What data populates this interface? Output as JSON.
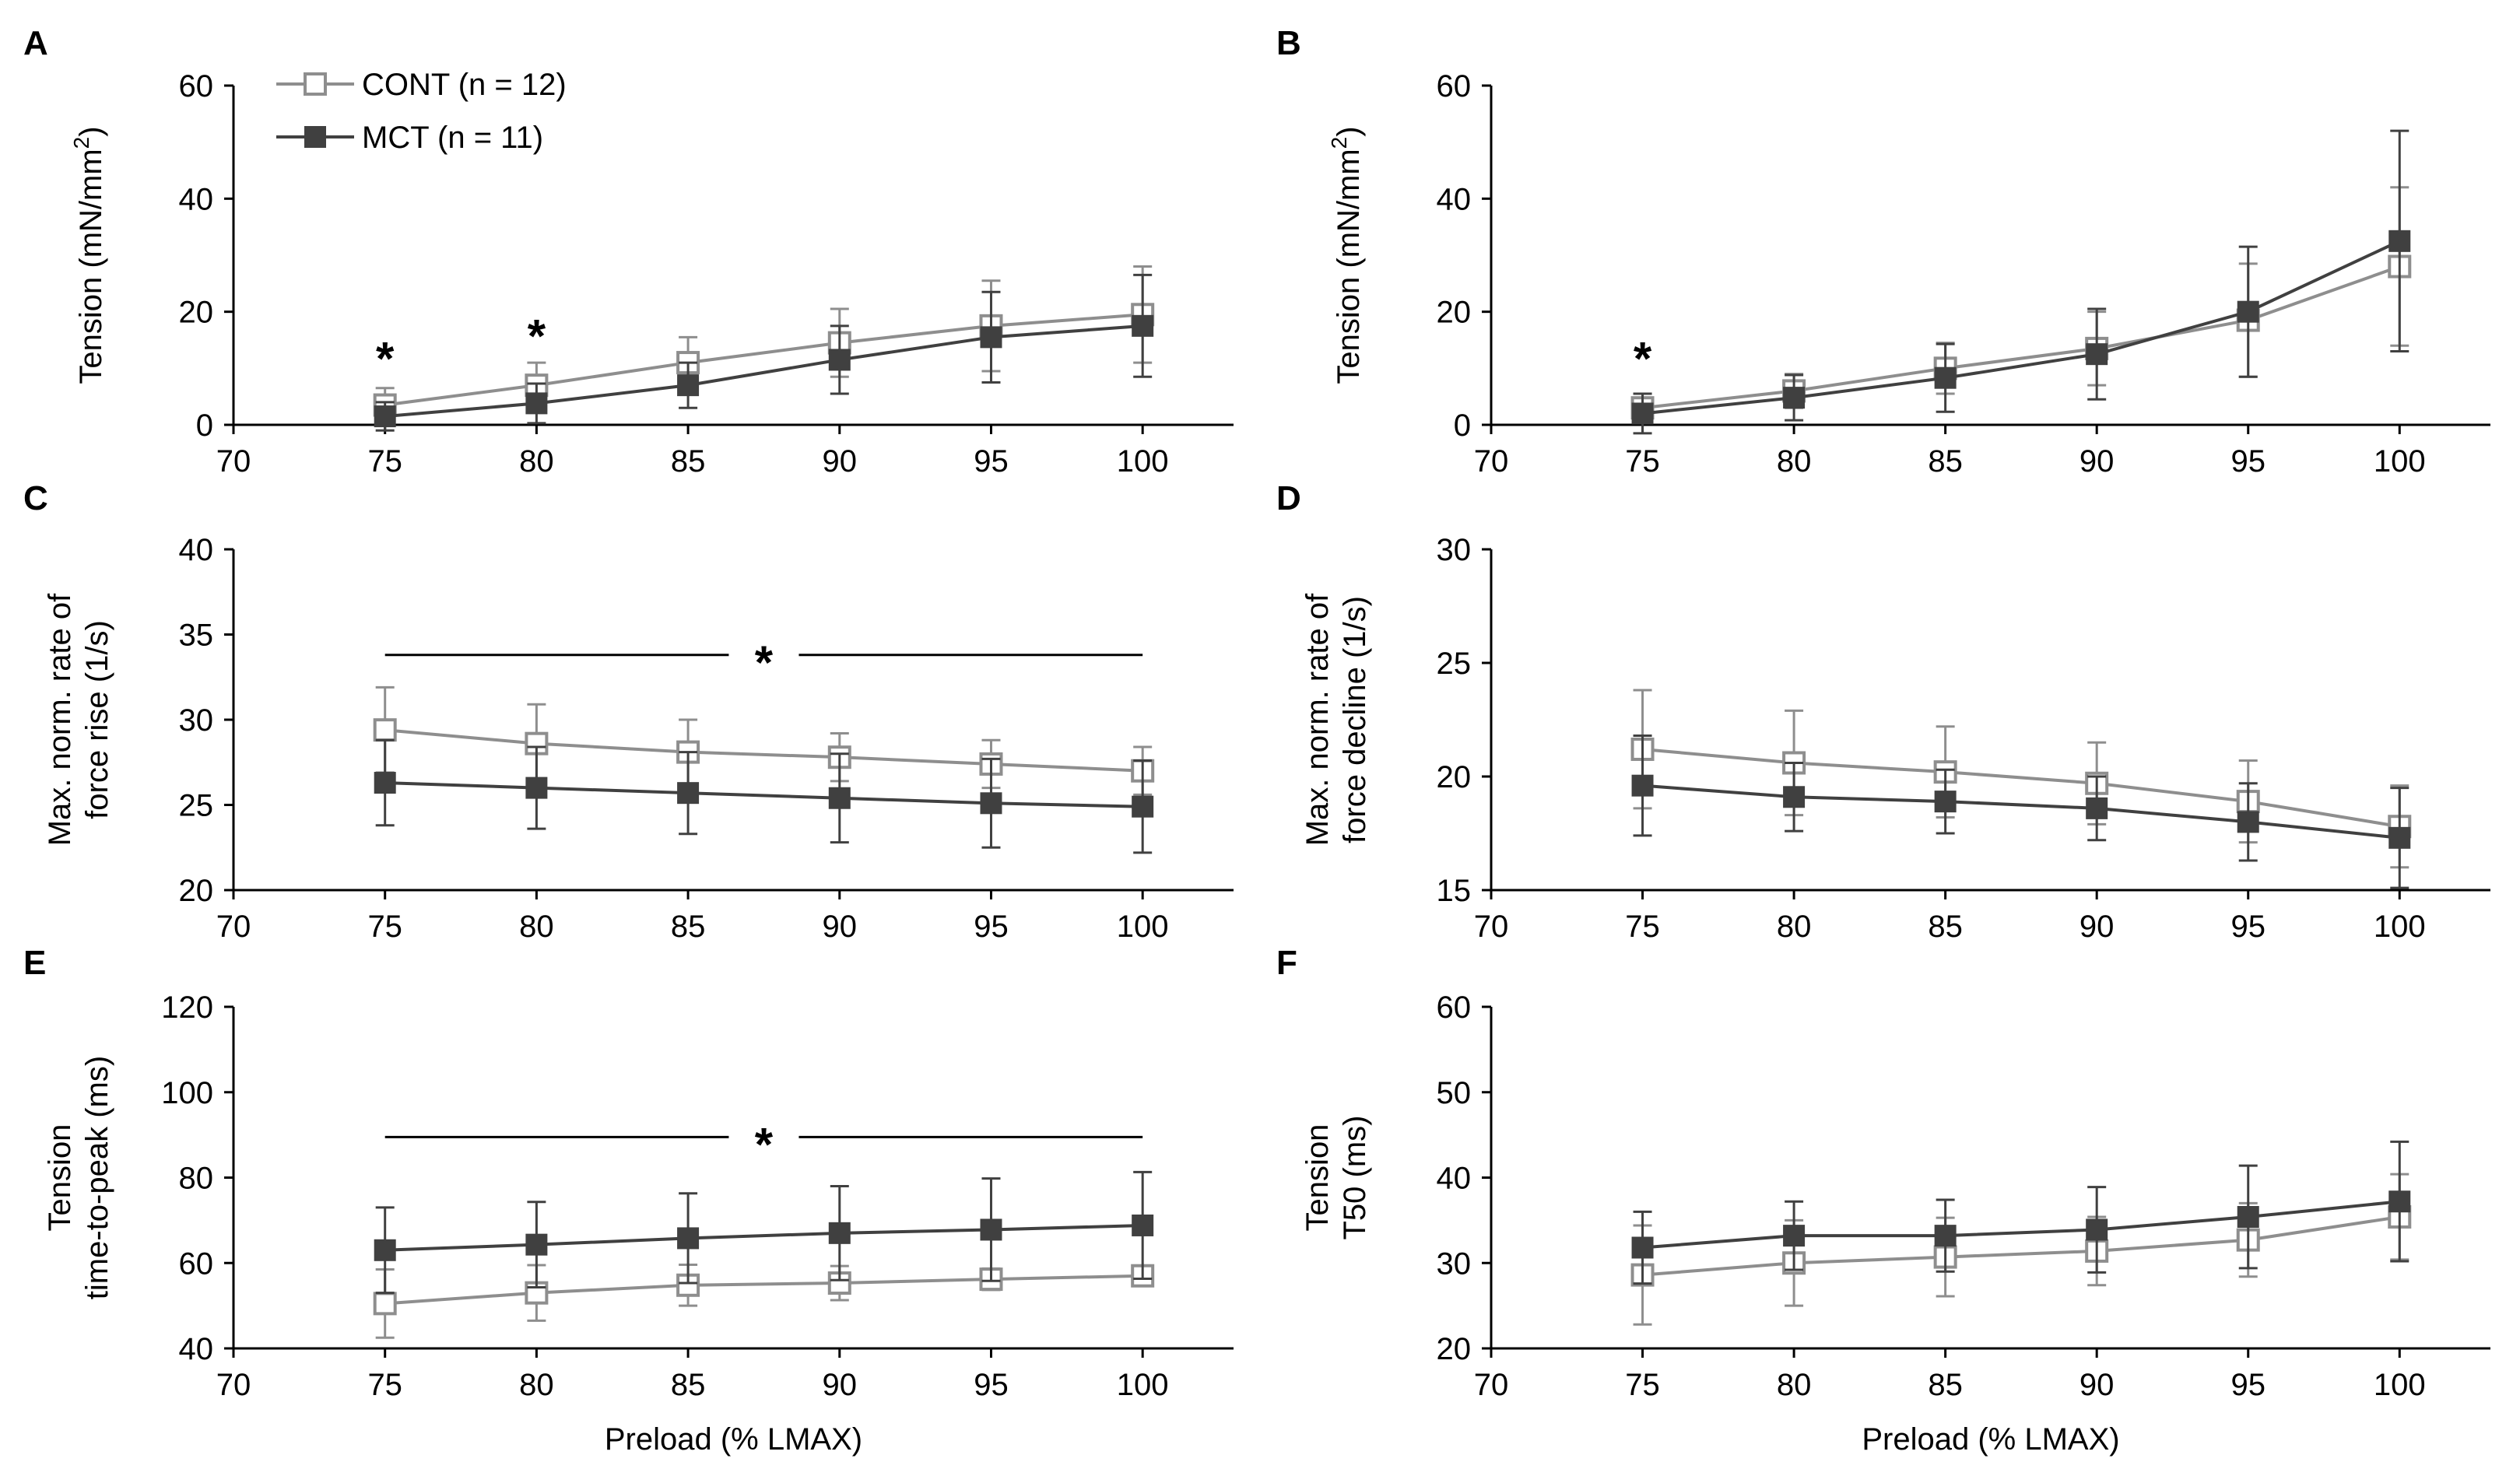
{
  "legend": {
    "items": [
      {
        "label": "CONT (n = 12)",
        "color": "#8e8e8e",
        "marker": "open-square"
      },
      {
        "label": "MCT (n = 11)",
        "color": "#404040",
        "marker": "filled-square"
      }
    ]
  },
  "colors": {
    "cont": "#8e8e8e",
    "mct": "#404040",
    "axis": "#000000"
  },
  "chart_data": [
    {
      "panel": "A",
      "type": "line",
      "xlabel": "",
      "ylabel": "Tension (mN/mm",
      "ylabel_sup": "2",
      "ylabel_end": ")",
      "xlim": [
        70,
        103
      ],
      "ylim": [
        0,
        60
      ],
      "xticks": [
        70,
        75,
        80,
        85,
        90,
        95,
        100
      ],
      "yticks": [
        0,
        20,
        40,
        60
      ],
      "x": [
        75,
        80,
        85,
        90,
        95,
        100
      ],
      "series": [
        {
          "name": "CONT",
          "values": [
            3.5,
            7,
            11,
            14.5,
            17.5,
            19.5
          ],
          "err": [
            3,
            4,
            4.5,
            6,
            8,
            8.5
          ]
        },
        {
          "name": "MCT",
          "values": [
            1.5,
            3.8,
            7,
            11.5,
            15.5,
            17.5
          ],
          "err": [
            2.5,
            3.5,
            4,
            6,
            8,
            9
          ]
        }
      ],
      "annotations": [
        {
          "x": 75,
          "y": 13,
          "text": "*"
        },
        {
          "x": 80,
          "y": 17,
          "text": "*"
        }
      ]
    },
    {
      "panel": "B",
      "type": "line",
      "xlabel": "",
      "ylabel": "Tension (mN/mm",
      "ylabel_sup": "2",
      "ylabel_end": ")",
      "xlim": [
        70,
        103
      ],
      "ylim": [
        0,
        60
      ],
      "xticks": [
        70,
        75,
        80,
        85,
        90,
        95,
        100
      ],
      "yticks": [
        0,
        20,
        40,
        60
      ],
      "x": [
        75,
        80,
        85,
        90,
        95,
        100
      ],
      "series": [
        {
          "name": "CONT",
          "values": [
            3,
            6,
            10,
            13.5,
            18.5,
            28
          ],
          "err": [
            2.5,
            3,
            4.5,
            6.5,
            10,
            14
          ]
        },
        {
          "name": "MCT",
          "values": [
            2,
            4.8,
            8.3,
            12.5,
            20,
            32.5
          ],
          "err": [
            3.5,
            4,
            6,
            8,
            11.5,
            19.5
          ]
        }
      ],
      "annotations": [
        {
          "x": 75,
          "y": 13,
          "text": "*"
        }
      ]
    },
    {
      "panel": "C",
      "type": "line",
      "xlabel": "",
      "ylabel_lines": [
        "Max. norm. rate of",
        "force rise (1/s)"
      ],
      "xlim": [
        70,
        103
      ],
      "ylim": [
        20,
        40
      ],
      "xticks": [
        70,
        75,
        80,
        85,
        90,
        95,
        100
      ],
      "yticks": [
        20,
        25,
        30,
        35,
        40
      ],
      "x": [
        75,
        80,
        85,
        90,
        95,
        100
      ],
      "series": [
        {
          "name": "CONT",
          "values": [
            29.4,
            28.6,
            28.1,
            27.8,
            27.4,
            27
          ],
          "err": [
            2.5,
            2.3,
            1.9,
            1.4,
            1.4,
            1.4
          ]
        },
        {
          "name": "MCT",
          "values": [
            26.3,
            26,
            25.7,
            25.4,
            25.1,
            24.9
          ],
          "err": [
            2.5,
            2.4,
            2.4,
            2.6,
            2.6,
            2.7
          ]
        }
      ],
      "bracket": {
        "x1": 75,
        "x2": 100,
        "y": 33.8,
        "text": "*"
      }
    },
    {
      "panel": "D",
      "type": "line",
      "xlabel": "",
      "ylabel_lines": [
        "Max. norm. rate of",
        "force decline (1/s)"
      ],
      "xlim": [
        70,
        103
      ],
      "ylim": [
        15,
        30
      ],
      "xticks": [
        70,
        75,
        80,
        85,
        90,
        95,
        100
      ],
      "yticks": [
        15,
        20,
        25,
        30
      ],
      "x": [
        75,
        80,
        85,
        90,
        95,
        100
      ],
      "series": [
        {
          "name": "CONT",
          "values": [
            21.2,
            20.6,
            20.2,
            19.7,
            18.9,
            17.8
          ],
          "err": [
            2.6,
            2.3,
            2,
            1.8,
            1.8,
            1.8
          ]
        },
        {
          "name": "MCT",
          "values": [
            19.6,
            19.1,
            18.9,
            18.6,
            18,
            17.3
          ],
          "err": [
            2.2,
            1.5,
            1.4,
            1.4,
            1.7,
            2.2
          ]
        }
      ]
    },
    {
      "panel": "E",
      "type": "line",
      "xlabel": "Preload (% LMAX)",
      "ylabel_lines": [
        "Tension",
        "time-to-peak (ms)"
      ],
      "xlim": [
        70,
        103
      ],
      "ylim": [
        40,
        120
      ],
      "xticks": [
        70,
        75,
        80,
        85,
        90,
        95,
        100
      ],
      "yticks": [
        40,
        60,
        80,
        100,
        120
      ],
      "x": [
        75,
        80,
        85,
        90,
        95,
        100
      ],
      "series": [
        {
          "name": "CONT",
          "values": [
            50.5,
            53,
            54.8,
            55.3,
            56.2,
            57
          ],
          "err": [
            8,
            6.5,
            4.8,
            4,
            2.5,
            2
          ]
        },
        {
          "name": "MCT",
          "values": [
            63,
            64.3,
            65.8,
            67,
            67.8,
            68.8
          ],
          "err": [
            10,
            10,
            10.5,
            11,
            12,
            12.5
          ]
        }
      ],
      "bracket": {
        "x1": 75,
        "x2": 100,
        "y": 89.5,
        "text": "*"
      }
    },
    {
      "panel": "F",
      "type": "line",
      "xlabel": "Preload (% LMAX)",
      "ylabel_lines": [
        "Tension",
        "T50 (ms)"
      ],
      "xlim": [
        70,
        103
      ],
      "ylim": [
        20,
        60
      ],
      "xticks": [
        70,
        75,
        80,
        85,
        90,
        95,
        100
      ],
      "yticks": [
        20,
        30,
        40,
        50,
        60
      ],
      "x": [
        75,
        80,
        85,
        90,
        95,
        100
      ],
      "series": [
        {
          "name": "CONT",
          "values": [
            28.6,
            30,
            30.7,
            31.4,
            32.7,
            35.4
          ],
          "err": [
            5.8,
            5,
            4.6,
            4,
            4.3,
            5
          ]
        },
        {
          "name": "MCT",
          "values": [
            31.8,
            33.2,
            33.2,
            33.9,
            35.4,
            37.2
          ],
          "err": [
            4.2,
            4,
            4.2,
            5,
            6,
            7
          ]
        }
      ]
    }
  ]
}
